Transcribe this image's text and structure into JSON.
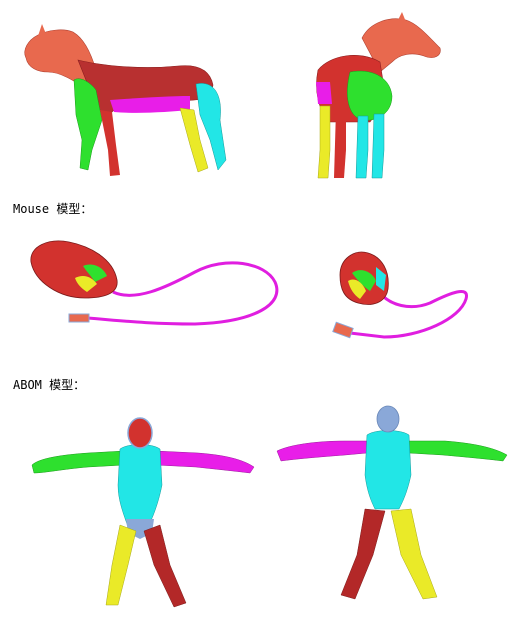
{
  "captions": {
    "mouse": "Mouse 模型：",
    "abom": "ABOM 模型："
  },
  "segment_colors": {
    "red": "#d2322e",
    "salmon": "#e8694e",
    "green": "#2ee02e",
    "magenta": "#e81ee8",
    "yellow": "#eaea28",
    "cyan": "#22e6e6",
    "blue_gray": "#8aa8d8",
    "dark_red": "#b32828",
    "wire": "#e01ee0"
  }
}
